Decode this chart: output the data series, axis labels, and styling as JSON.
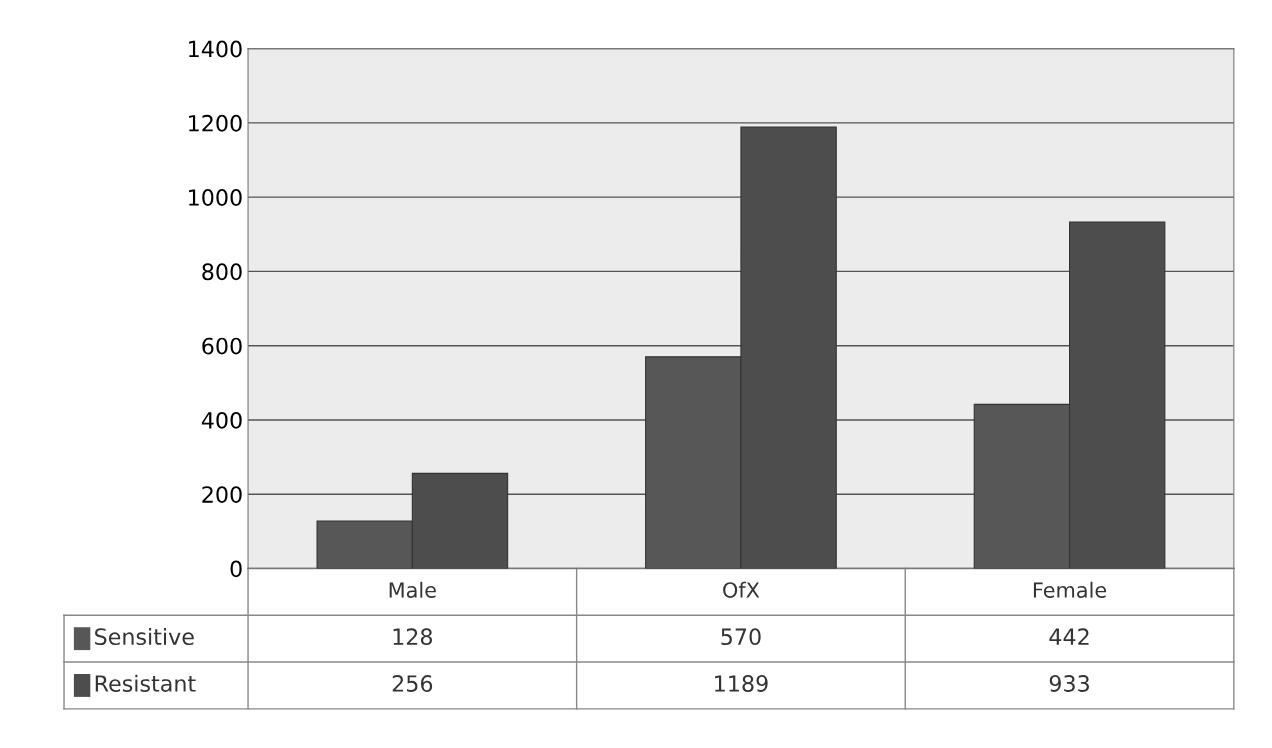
{
  "chart_data": {
    "type": "bar",
    "categories": [
      "Male",
      "OfX",
      "Female"
    ],
    "series": [
      {
        "name": "Sensitive",
        "color": "#575757",
        "values": [
          128,
          570,
          442
        ]
      },
      {
        "name": "Resistant",
        "color": "#4d4d4d",
        "values": [
          256,
          1189,
          933
        ]
      }
    ],
    "ylim": [
      0,
      1400
    ],
    "yticks": [
      0,
      200,
      400,
      600,
      800,
      1000,
      1200,
      1400
    ],
    "grid": "y",
    "data_labels": true,
    "legend": "bottom"
  }
}
